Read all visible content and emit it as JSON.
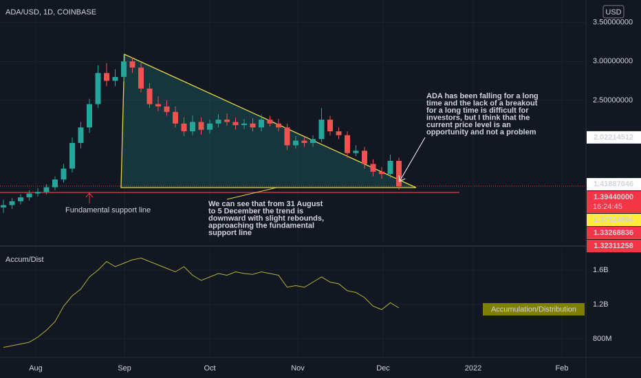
{
  "chart_data": [
    {
      "type": "candlestick",
      "title": "ADA/USD, 1D, COINBASE",
      "currency": "USD",
      "categories": [
        null,
        null,
        null,
        null,
        null,
        null,
        null,
        null,
        null,
        null,
        null,
        null,
        null,
        null,
        null,
        null,
        null,
        null,
        null,
        null,
        null,
        null,
        null,
        null,
        null,
        null,
        null,
        null,
        null,
        null,
        null,
        null,
        null,
        null,
        null,
        null,
        null,
        null,
        null,
        null,
        null,
        null,
        null,
        null,
        null,
        null,
        null
      ],
      "open": [
        1.12,
        1.15,
        1.2,
        1.25,
        1.3,
        1.32,
        1.38,
        1.48,
        1.62,
        1.95,
        2.15,
        2.45,
        2.85,
        2.75,
        2.8,
        3.0,
        2.92,
        2.65,
        2.45,
        2.42,
        2.35,
        2.2,
        2.1,
        2.22,
        2.12,
        2.2,
        2.25,
        2.22,
        2.18,
        2.2,
        2.15,
        2.25,
        2.2,
        2.15,
        1.92,
        1.98,
        1.95,
        2.0,
        2.25,
        2.1,
        2.05,
        1.82,
        1.85,
        1.68,
        1.58,
        1.55,
        1.72
      ],
      "high": [
        1.22,
        1.24,
        1.29,
        1.34,
        1.37,
        1.42,
        1.52,
        1.68,
        2.02,
        2.22,
        2.52,
        2.95,
        2.98,
        2.9,
        3.09,
        3.05,
        2.98,
        2.72,
        2.55,
        2.5,
        2.42,
        2.28,
        2.3,
        2.28,
        2.25,
        2.32,
        2.33,
        2.28,
        2.26,
        2.27,
        2.32,
        2.3,
        2.26,
        2.2,
        2.04,
        2.03,
        2.05,
        2.4,
        2.3,
        2.15,
        2.1,
        1.92,
        1.9,
        1.74,
        1.64,
        1.8,
        1.76
      ],
      "low": [
        1.05,
        1.1,
        1.16,
        1.21,
        1.26,
        1.29,
        1.34,
        1.44,
        1.57,
        1.88,
        2.08,
        2.4,
        2.68,
        2.68,
        2.74,
        2.85,
        2.6,
        2.4,
        2.36,
        2.3,
        2.15,
        2.04,
        2.05,
        2.06,
        2.07,
        2.15,
        2.17,
        2.12,
        2.13,
        2.1,
        2.1,
        2.16,
        2.1,
        1.86,
        1.88,
        1.9,
        1.9,
        1.96,
        2.05,
        2.0,
        1.76,
        1.78,
        1.62,
        1.52,
        1.49,
        1.5,
        1.35
      ],
      "close": [
        1.15,
        1.2,
        1.25,
        1.3,
        1.32,
        1.38,
        1.48,
        1.62,
        1.95,
        2.15,
        2.45,
        2.85,
        2.75,
        2.8,
        3.0,
        2.92,
        2.65,
        2.45,
        2.42,
        2.35,
        2.2,
        2.1,
        2.22,
        2.12,
        2.2,
        2.25,
        2.22,
        2.18,
        2.2,
        2.15,
        2.25,
        2.2,
        2.15,
        1.92,
        1.98,
        1.95,
        2.0,
        2.25,
        2.1,
        2.05,
        1.82,
        1.85,
        1.68,
        1.58,
        1.55,
        1.72,
        1.39
      ],
      "up_color": "#26a69a",
      "down_color": "#ef5350",
      "xlim": [
        -0.4,
        67.76
      ],
      "ylim": [
        0.65,
        3.79
      ],
      "yticks": [
        {
          "value": 3.5,
          "label": "3.50000000"
        },
        {
          "value": 3.0,
          "label": "3.00000000"
        },
        {
          "value": 2.5,
          "label": "2.50000000"
        }
      ],
      "grid": true,
      "price_labels": [
        {
          "value": 2.02214512,
          "label": "2.02214512",
          "color": "#ffffff"
        },
        {
          "value": 1.41887046,
          "label": "1.41887046",
          "color": "#ffffff"
        },
        {
          "value": 1.3944,
          "label": "1.39440000",
          "countdown": "16:24:45",
          "color": "#f23645"
        },
        {
          "value": 1.37924904,
          "label": "1.37924904",
          "color": "#ffeb3b"
        },
        {
          "value": 1.33268836,
          "label": "1.33268836",
          "color": "#f23645"
        },
        {
          "value": 1.32311258,
          "label": "1.32311258",
          "color": "#f23645"
        }
      ],
      "annotations": [
        {
          "lines": [
            "Fundamental support line"
          ],
          "color": "#f23645"
        },
        {
          "lines": [
            "We can see that from 31 August",
            "to 5 December the trend is",
            "downward with slight rebounds,",
            "approaching the fundamental",
            "support line"
          ],
          "color": "#ffeb3b"
        },
        {
          "lines": [
            "ADA has been falling for a long",
            "time and the lack of a breakout",
            "for a long time is difficult for",
            "investors, but I think that the",
            "current price level is an",
            "opportunity and not a problem"
          ],
          "color": "#ffffff"
        }
      ]
    },
    {
      "type": "line",
      "title": "Accum/Dist",
      "legend": "Accumulation/Distribution",
      "categories": [
        null,
        null,
        null,
        null,
        null,
        null,
        null,
        null,
        null,
        null,
        null,
        null,
        null,
        null,
        null,
        null,
        null,
        null,
        null,
        null,
        null,
        null,
        null,
        null,
        null,
        null,
        null,
        null,
        null,
        null,
        null,
        null,
        null,
        null,
        null,
        null,
        null,
        null,
        null,
        null,
        null,
        null,
        null,
        null,
        null,
        null,
        null
      ],
      "series": [
        {
          "name": "Accumulation/Distribution",
          "color": "#b5b53a",
          "values": [
            700000000,
            720000000,
            740000000,
            760000000,
            820000000,
            900000000,
            1000000000,
            1180000000,
            1300000000,
            1380000000,
            1520000000,
            1600000000,
            1700000000,
            1640000000,
            1680000000,
            1720000000,
            1740000000,
            1700000000,
            1660000000,
            1620000000,
            1580000000,
            1640000000,
            1540000000,
            1480000000,
            1520000000,
            1560000000,
            1540000000,
            1580000000,
            1560000000,
            1550000000,
            1580000000,
            1560000000,
            1540000000,
            1400000000,
            1420000000,
            1400000000,
            1460000000,
            1520000000,
            1460000000,
            1440000000,
            1360000000,
            1340000000,
            1280000000,
            1180000000,
            1140000000,
            1220000000,
            1160000000
          ]
        }
      ],
      "xlim": [
        -0.4,
        67.76
      ],
      "ylim": [
        584000000,
        1848000000
      ],
      "yticks": [
        {
          "value": 1600000000,
          "label": "1.6B"
        },
        {
          "value": 1200000000,
          "label": "1.2B"
        },
        {
          "value": 800000000,
          "label": "800M"
        }
      ],
      "xticks": [
        {
          "value": 3.76,
          "label": "Aug"
        },
        {
          "value": 14.08,
          "label": "Sep"
        },
        {
          "value": 24,
          "label": "Oct"
        },
        {
          "value": 34.24,
          "label": "Nov"
        },
        {
          "value": 44.16,
          "label": "Dec"
        },
        {
          "value": 54.64,
          "label": "2022"
        },
        {
          "value": 64.96,
          "label": "Feb"
        }
      ],
      "grid": true
    }
  ]
}
